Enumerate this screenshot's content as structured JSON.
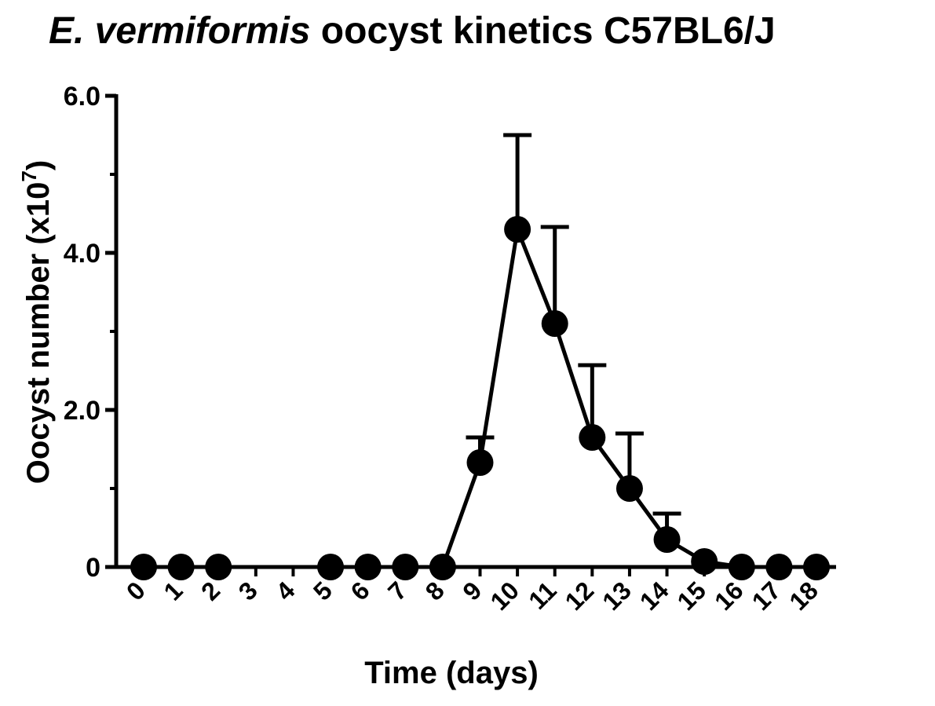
{
  "chart_data": {
    "type": "line",
    "title_italic": "E. vermiformis",
    "title_rest": " oocyst kinetics C57BL6/J",
    "ylabel_main": "Oocyst number (x10",
    "ylabel_exp": "7",
    "ylabel_close": ")",
    "xlabel": "Time (days)",
    "xlim": [
      -0.5,
      18.5
    ],
    "ylim": [
      0,
      6.0
    ],
    "yticks": [
      {
        "value": 0,
        "label": "0"
      },
      {
        "value": 2,
        "label": "2.0"
      },
      {
        "value": 4,
        "label": "4.0"
      },
      {
        "value": 6,
        "label": "6.0"
      }
    ],
    "xticks": [
      "0",
      "1",
      "2",
      "3",
      "4",
      "5",
      "6",
      "7",
      "8",
      "9",
      "10",
      "11",
      "12",
      "13",
      "14",
      "15",
      "16",
      "17",
      "18"
    ],
    "grid": false,
    "series": [
      {
        "x": [
          0,
          1,
          2,
          5,
          6,
          7,
          8,
          9,
          10,
          11,
          12,
          13,
          14,
          15,
          16,
          17,
          18
        ],
        "y": [
          0,
          0,
          0,
          0,
          0,
          0,
          0,
          1.33,
          4.3,
          3.1,
          1.65,
          1.0,
          0.35,
          0.07,
          0,
          0,
          0
        ],
        "error_upper": [
          0,
          0,
          0,
          0,
          0,
          0,
          0,
          1.65,
          5.5,
          4.33,
          2.57,
          1.7,
          0.68,
          0,
          0,
          0,
          0
        ],
        "color": "#000000"
      }
    ]
  }
}
